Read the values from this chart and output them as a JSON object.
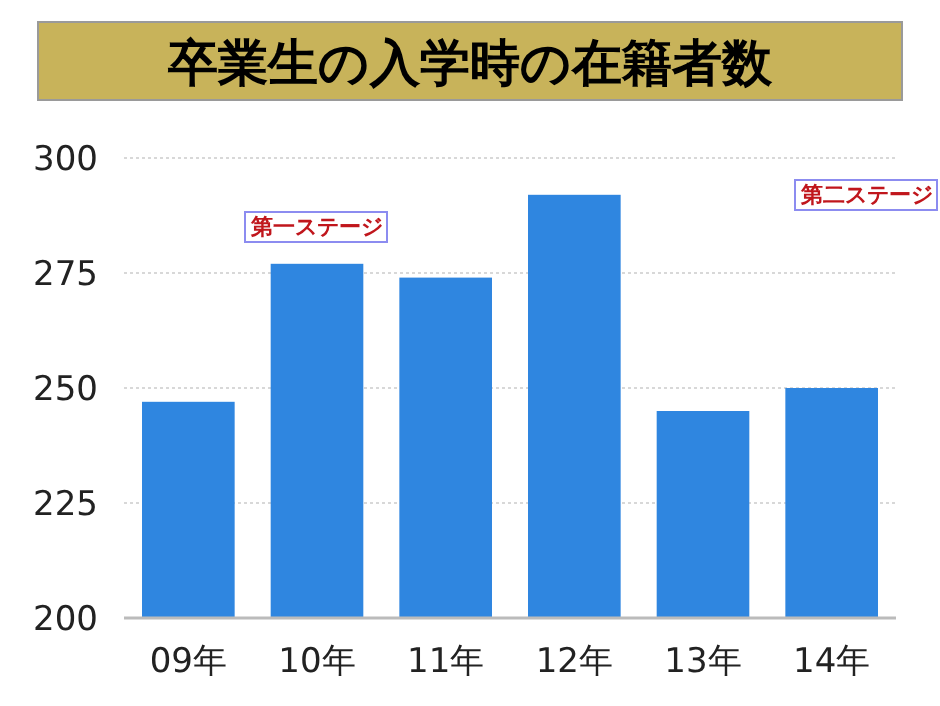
{
  "chart_data": {
    "type": "bar",
    "title": "卒業生の入学時の在籍者数",
    "categories": [
      "09年",
      "10年",
      "11年",
      "12年",
      "13年",
      "14年"
    ],
    "values": [
      247,
      277,
      274,
      292,
      245,
      250
    ],
    "color": "#2f86e0",
    "ylim": [
      200,
      300
    ],
    "yticks": [
      200,
      225,
      250,
      275,
      300
    ],
    "grid": "y",
    "annotations": [
      "第一ステージ",
      "第二ステージ"
    ]
  }
}
